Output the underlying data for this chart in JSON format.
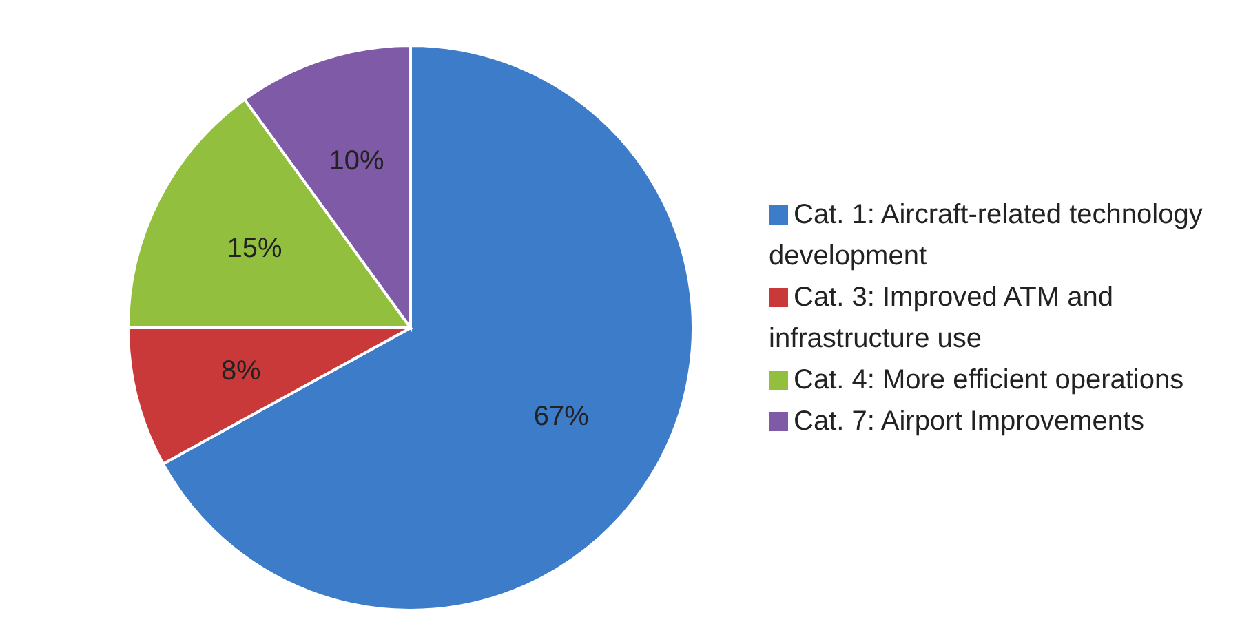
{
  "chart_data": {
    "type": "pie",
    "categories": [
      "Cat. 1: Aircraft-related technology development",
      "Cat. 3: Improved ATM and infrastructure use",
      "Cat. 4: More efficient operations",
      "Cat. 7: Airport Improvements"
    ],
    "values": [
      67,
      8,
      15,
      10
    ],
    "value_labels": [
      "67%",
      "8%",
      "15%",
      "10%"
    ],
    "colors": [
      "#3d7cc9",
      "#c9393a",
      "#93bf3f",
      "#7f5aa6"
    ],
    "legend": "right"
  }
}
